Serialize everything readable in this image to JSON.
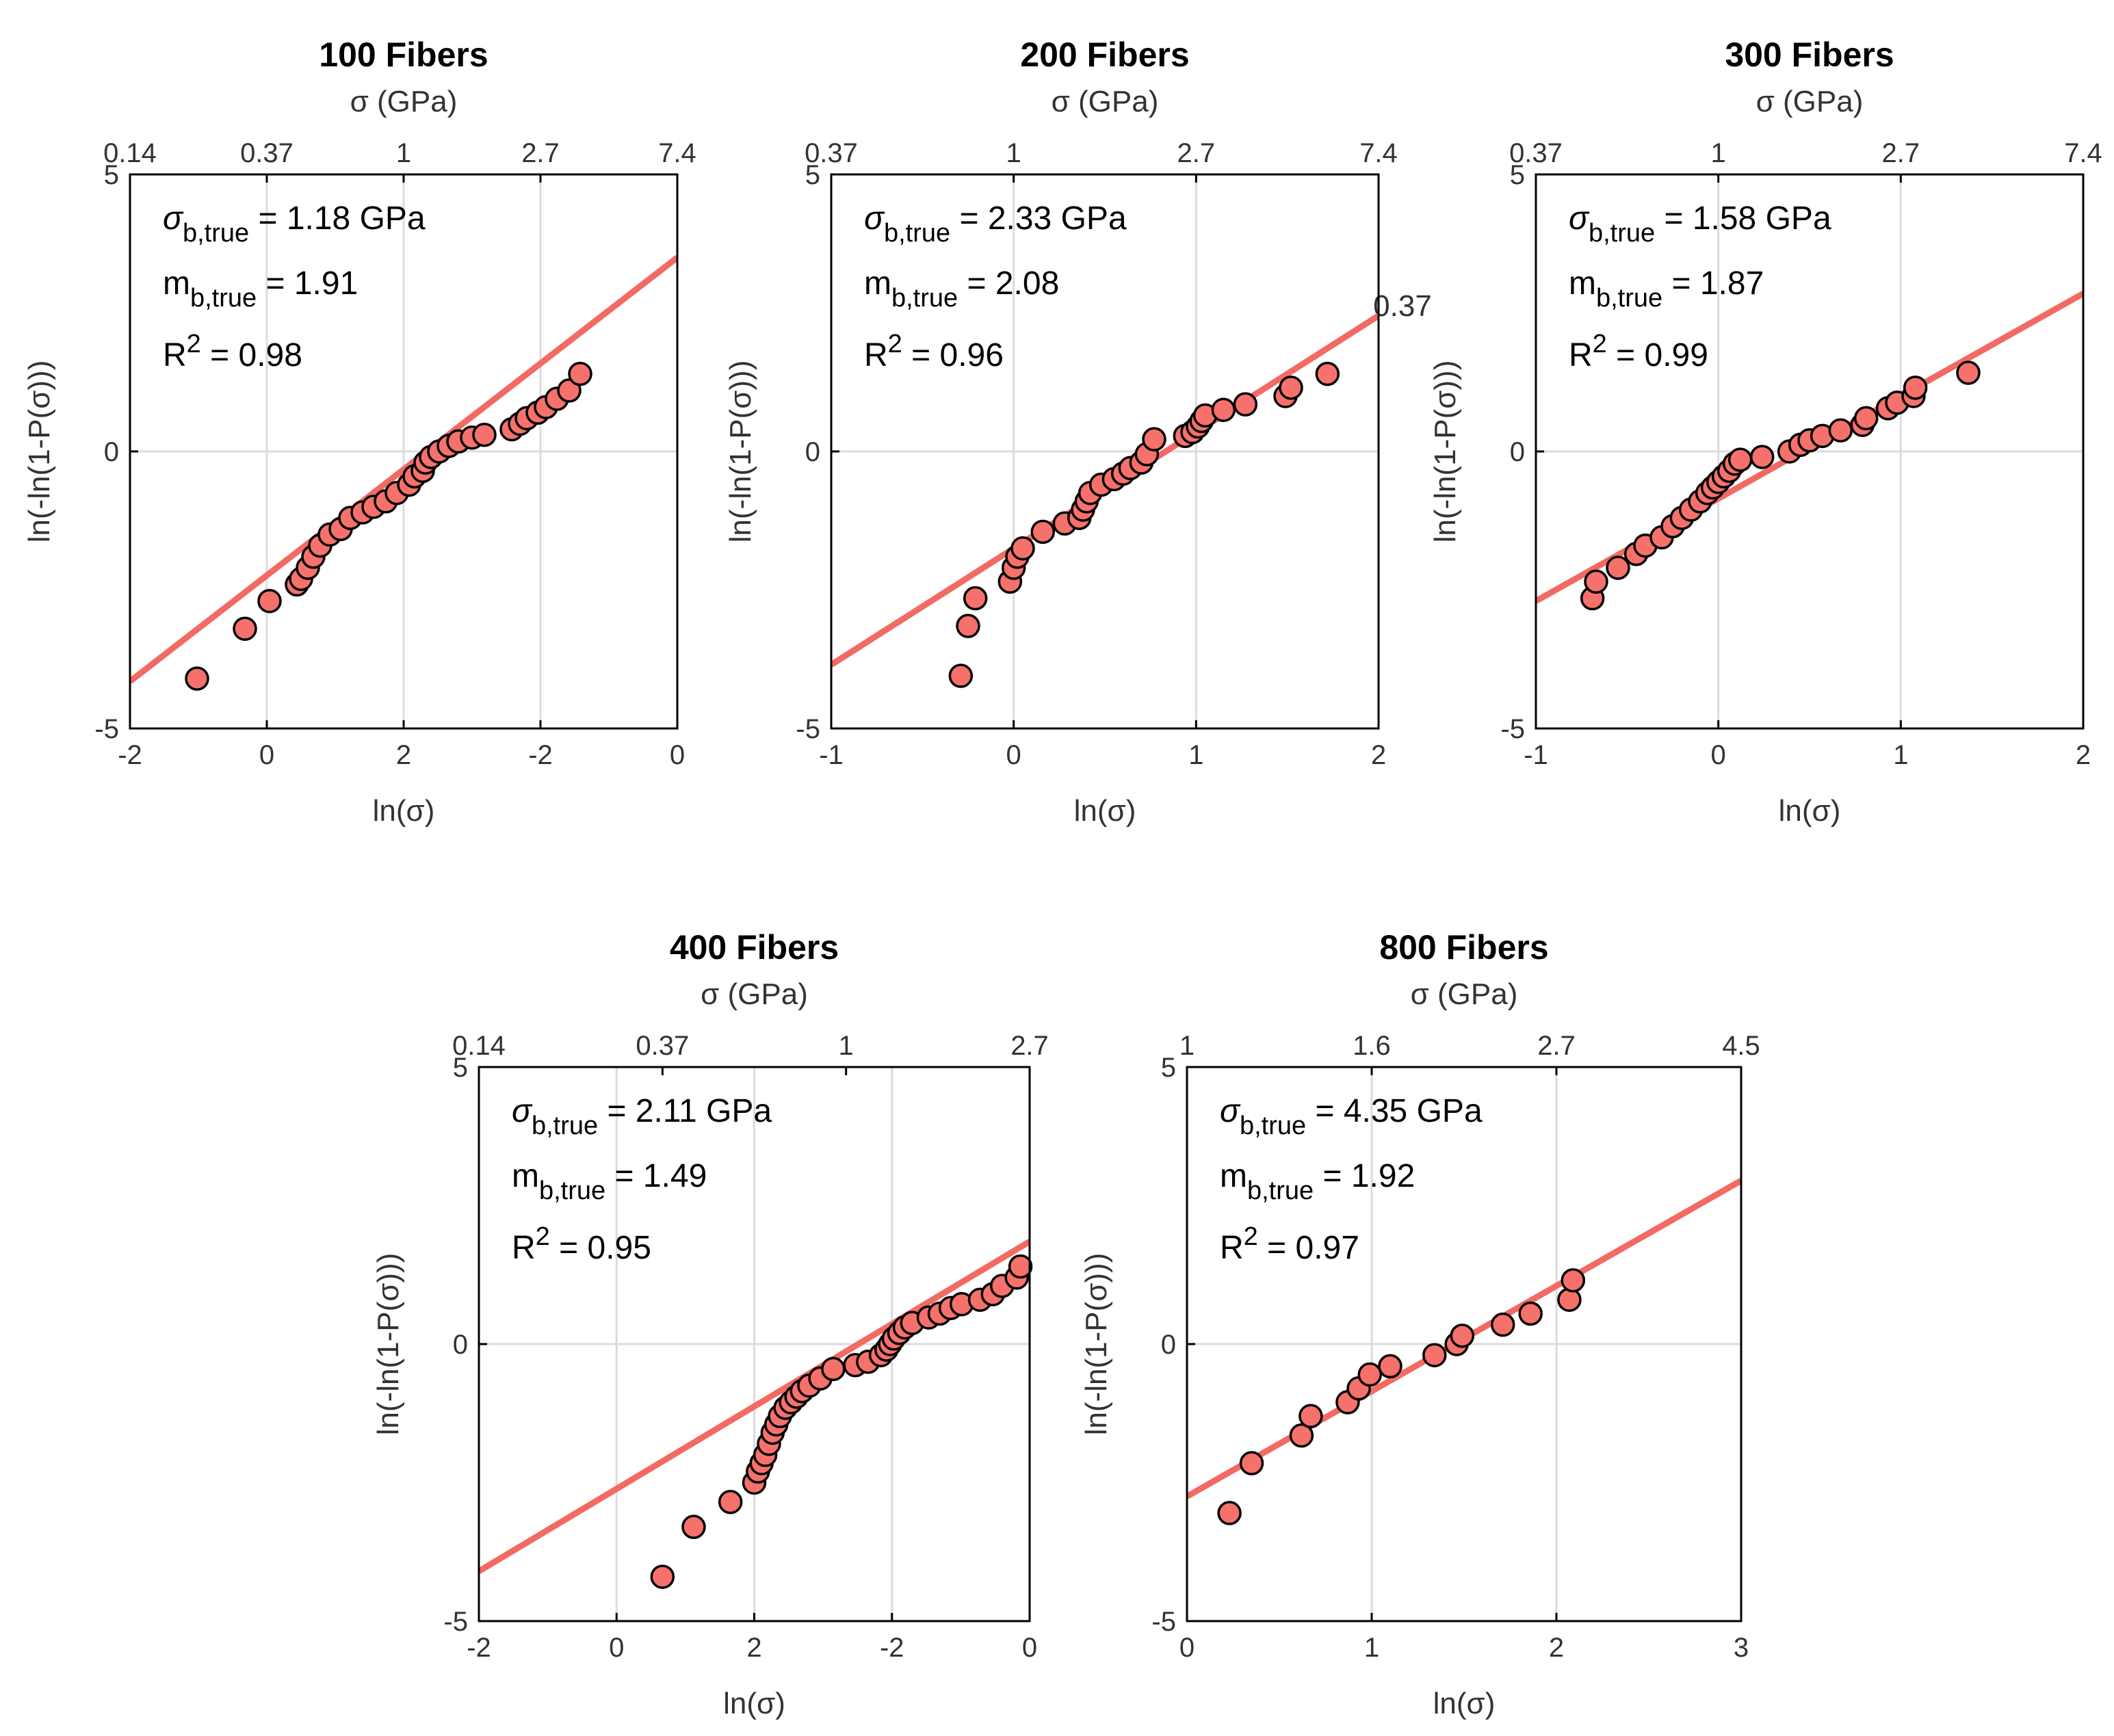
{
  "figure": {
    "stray_label": "0.37"
  },
  "chart_data": [
    {
      "type": "scatter",
      "title": "100 Fibers",
      "xlabel": "ln(σ)",
      "ylabel": "ln(-ln(1-P(σ)))",
      "top_axis_label": "σ (GPa)",
      "xlim": [
        -2,
        2
      ],
      "ylim": [
        -5,
        5
      ],
      "xticklabels": [
        "-2",
        "0",
        "2",
        "-2",
        "0"
      ],
      "yticklabels": [
        "-5",
        "0",
        "5"
      ],
      "top_ticklabels": [
        "0.14",
        "0.37",
        "1",
        "2.7",
        "7.4"
      ],
      "annotations": {
        "sigma_label": "σ",
        "sigma_sub": "b,true",
        "sigma_text": " = 1.18 GPa",
        "m_label": "m",
        "m_sub": "b,true",
        "m_text": " = 1.91",
        "r_label": "R",
        "r_sup": "2",
        "r_text": " = 0.98"
      },
      "fit_line": {
        "x": [
          -2,
          2
        ],
        "y": [
          -4.15,
          3.5
        ]
      },
      "points": {
        "x": [
          -1.51,
          -1.16,
          -0.98,
          -0.78,
          -0.75,
          -0.7,
          -0.66,
          -0.61,
          -0.54,
          -0.46,
          -0.39,
          -0.3,
          -0.22,
          -0.13,
          -0.05,
          0.04,
          0.08,
          0.14,
          0.16,
          0.2,
          0.26,
          0.33,
          0.4,
          0.5,
          0.59,
          0.79,
          0.85,
          0.9,
          0.98,
          1.04,
          1.12,
          1.21,
          1.29
        ],
        "y": [
          -4.1,
          -3.2,
          -2.7,
          -2.4,
          -2.3,
          -2.1,
          -1.9,
          -1.7,
          -1.5,
          -1.4,
          -1.2,
          -1.1,
          -1.0,
          -0.9,
          -0.75,
          -0.6,
          -0.45,
          -0.35,
          -0.2,
          -0.1,
          0.0,
          0.1,
          0.18,
          0.25,
          0.3,
          0.4,
          0.5,
          0.6,
          0.7,
          0.8,
          0.95,
          1.1,
          1.4
        ]
      }
    },
    {
      "type": "scatter",
      "title": "200 Fibers",
      "xlabel": "ln(σ)",
      "ylabel": "ln(-ln(1-P(σ)))",
      "top_axis_label": "σ (GPa)",
      "xlim": [
        -1,
        2
      ],
      "ylim": [
        -5,
        5
      ],
      "xticklabels": [
        "-1",
        "0",
        "1",
        "2"
      ],
      "yticklabels": [
        "-5",
        "0",
        "5"
      ],
      "top_ticklabels": [
        "0.37",
        "1",
        "2.7",
        "7.4"
      ],
      "annotations": {
        "sigma_label": "σ",
        "sigma_sub": "b,true",
        "sigma_text": " = 2.33 GPa",
        "m_label": "m",
        "m_sub": "b,true",
        "m_text": " = 2.08",
        "r_label": "R",
        "r_sup": "2",
        "r_text": " = 0.96"
      },
      "fit_line": {
        "x": [
          -1,
          2
        ],
        "y": [
          -3.85,
          2.45
        ]
      },
      "points": {
        "x": [
          -0.29,
          -0.25,
          -0.21,
          -0.02,
          0.0,
          0.02,
          0.05,
          0.16,
          0.28,
          0.36,
          0.38,
          0.4,
          0.42,
          0.48,
          0.55,
          0.6,
          0.64,
          0.7,
          0.73,
          0.77,
          0.94,
          0.98,
          1.01,
          1.03,
          1.05,
          1.15,
          1.27,
          1.49,
          1.52,
          1.72
        ],
        "y": [
          -4.05,
          -3.15,
          -2.65,
          -2.35,
          -2.1,
          -1.9,
          -1.75,
          -1.45,
          -1.3,
          -1.2,
          -1.05,
          -0.9,
          -0.75,
          -0.6,
          -0.5,
          -0.4,
          -0.3,
          -0.2,
          -0.05,
          0.22,
          0.28,
          0.35,
          0.45,
          0.55,
          0.65,
          0.75,
          0.85,
          1.0,
          1.15,
          1.4
        ]
      }
    },
    {
      "type": "scatter",
      "title": "300 Fibers",
      "xlabel": "ln(σ)",
      "ylabel": "ln(-ln(1-P(σ)))",
      "top_axis_label": "σ (GPa)",
      "xlim": [
        -1,
        2
      ],
      "ylim": [
        -5,
        5
      ],
      "xticklabels": [
        "-1",
        "0",
        "1",
        "2"
      ],
      "yticklabels": [
        "-5",
        "0",
        "5"
      ],
      "top_ticklabels": [
        "0.37",
        "1",
        "2.7",
        "7.4"
      ],
      "annotations": {
        "sigma_label": "σ",
        "sigma_sub": "b,true",
        "sigma_text": " = 1.58 GPa",
        "m_label": "m",
        "m_sub": "b,true",
        "m_text": " = 1.87",
        "r_label": "R",
        "r_sup": "2",
        "r_text": " = 0.99"
      },
      "fit_line": {
        "x": [
          -1,
          2
        ],
        "y": [
          -2.7,
          2.85
        ]
      },
      "points": {
        "x": [
          -0.69,
          -0.67,
          -0.55,
          -0.45,
          -0.4,
          -0.31,
          -0.25,
          -0.2,
          -0.15,
          -0.1,
          -0.06,
          -0.03,
          0.0,
          0.03,
          0.06,
          0.09,
          0.12,
          0.24,
          0.39,
          0.45,
          0.5,
          0.57,
          0.67,
          0.79,
          0.81,
          0.93,
          0.98,
          1.07,
          1.08,
          1.37
        ],
        "y": [
          -2.65,
          -2.35,
          -2.1,
          -1.85,
          -1.7,
          -1.55,
          -1.35,
          -1.2,
          -1.05,
          -0.9,
          -0.75,
          -0.65,
          -0.55,
          -0.45,
          -0.35,
          -0.22,
          -0.15,
          -0.1,
          0.0,
          0.12,
          0.2,
          0.28,
          0.38,
          0.48,
          0.6,
          0.78,
          0.88,
          1.0,
          1.15,
          1.42
        ]
      }
    },
    {
      "type": "scatter",
      "title": "400 Fibers",
      "xlabel": "ln(σ)",
      "ylabel": "ln(-ln(1-P(σ)))",
      "top_axis_label": "σ (GPa)",
      "xlim": [
        -2,
        1
      ],
      "ylim": [
        -5,
        5
      ],
      "xticklabels": [
        "-2",
        "0",
        "2",
        "-2",
        "0"
      ],
      "yticklabels": [
        "-5",
        "0",
        "5"
      ],
      "top_ticklabels": [
        "0.14",
        "0.37",
        "1",
        "2.7"
      ],
      "annotations": {
        "sigma_label": "σ",
        "sigma_sub": "b,true",
        "sigma_text": " = 2.11 GPa",
        "m_label": "m",
        "m_sub": "b,true",
        "m_text": " = 1.49",
        "r_label": "R",
        "r_sup": "2",
        "r_text": " = 0.95"
      },
      "fit_line": {
        "x": [
          -2,
          1
        ],
        "y": [
          -4.1,
          1.85
        ]
      },
      "points": {
        "x": [
          -1.0,
          -0.83,
          -0.63,
          -0.5,
          -0.48,
          -0.46,
          -0.44,
          -0.42,
          -0.4,
          -0.38,
          -0.36,
          -0.33,
          -0.3,
          -0.27,
          -0.24,
          -0.2,
          -0.14,
          -0.07,
          0.05,
          0.12,
          0.19,
          0.22,
          0.24,
          0.26,
          0.29,
          0.32,
          0.36,
          0.45,
          0.51,
          0.57,
          0.63,
          0.73,
          0.8,
          0.85,
          0.93,
          0.95
        ],
        "y": [
          -4.2,
          -3.3,
          -2.85,
          -2.5,
          -2.3,
          -2.15,
          -2.0,
          -1.8,
          -1.6,
          -1.45,
          -1.3,
          -1.15,
          -1.05,
          -0.95,
          -0.85,
          -0.75,
          -0.62,
          -0.45,
          -0.38,
          -0.32,
          -0.2,
          -0.1,
          0.0,
          0.1,
          0.2,
          0.3,
          0.38,
          0.48,
          0.55,
          0.65,
          0.72,
          0.8,
          0.9,
          1.05,
          1.2,
          1.4
        ]
      }
    },
    {
      "type": "scatter",
      "title": "800 Fibers",
      "xlabel": "ln(σ)",
      "ylabel": "ln(-ln(1-P(σ)))",
      "top_axis_label": "σ (GPa)",
      "xlim": [
        0,
        3
      ],
      "ylim": [
        -5,
        5
      ],
      "xticklabels": [
        "0",
        "1",
        "2",
        "3"
      ],
      "yticklabels": [
        "-5",
        "0",
        "5"
      ],
      "top_ticklabels": [
        "1",
        "1.6",
        "2.7",
        "4.5"
      ],
      "annotations": {
        "sigma_label": "σ",
        "sigma_sub": "b,true",
        "sigma_text": " = 4.35 GPa",
        "m_label": "m",
        "m_sub": "b,true",
        "m_text": " = 1.92",
        "r_label": "R",
        "r_sup": "2",
        "r_text": " = 0.97"
      },
      "fit_line": {
        "x": [
          0,
          3
        ],
        "y": [
          -2.75,
          2.95
        ]
      },
      "points": {
        "x": [
          0.23,
          0.35,
          0.62,
          0.67,
          0.87,
          0.93,
          0.99,
          1.1,
          1.34,
          1.46,
          1.49,
          1.71,
          1.86,
          2.07,
          2.09
        ],
        "y": [
          -3.05,
          -2.15,
          -1.65,
          -1.3,
          -1.05,
          -0.8,
          -0.55,
          -0.4,
          -0.2,
          0.0,
          0.15,
          0.35,
          0.55,
          0.8,
          1.15
        ]
      }
    }
  ]
}
